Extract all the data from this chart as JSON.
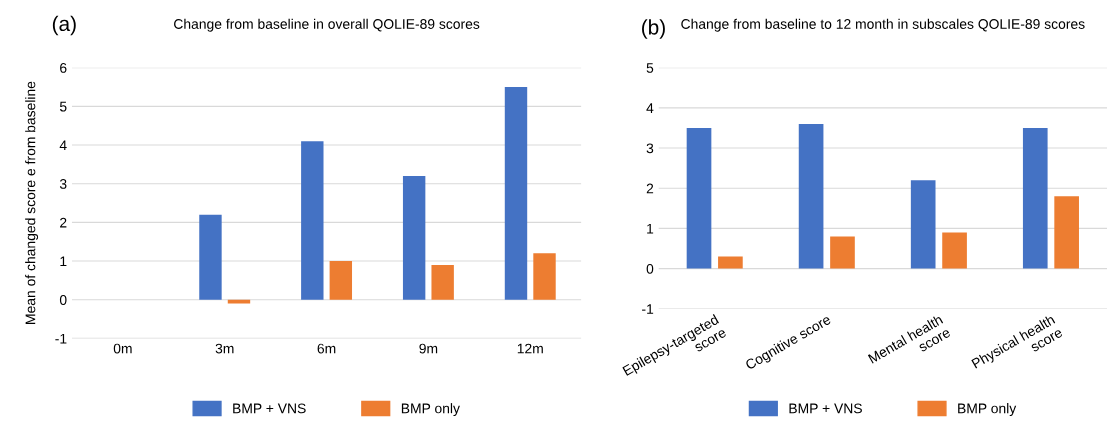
{
  "chart_data": [
    {
      "type": "bar",
      "title": "Change from baseline in overall QOLIE-89 scores",
      "ylabel": "Mean of changed score e from baseline",
      "annotations": [
        "(a)"
      ],
      "categories": [
        "0m",
        "3m",
        "6m",
        "9m",
        "12m"
      ],
      "series": [
        {
          "name": "BMP + VNS",
          "color": "#4472c4",
          "values": [
            null,
            2.2,
            4.1,
            3.2,
            5.5
          ]
        },
        {
          "name": "BMP only",
          "color": "#ed7d31",
          "values": [
            null,
            -0.1,
            1.0,
            0.9,
            1.2
          ]
        }
      ],
      "ylim": [
        -1,
        6
      ],
      "yticks": [
        -1,
        0,
        1,
        2,
        3,
        4,
        5,
        6
      ],
      "grid": "y",
      "legend": "bottom"
    },
    {
      "type": "bar",
      "title": "Change from baseline to 12 month in subscales QOLIE-89 scores",
      "annotations": [
        "(b)"
      ],
      "categories": [
        "Epilepsy-targeted\nscore",
        "Cognitive score",
        "Mental health\nscore",
        "Physical health\nscore"
      ],
      "series": [
        {
          "name": "BMP + VNS",
          "color": "#4472c4",
          "values": [
            3.5,
            3.6,
            2.2,
            3.5
          ]
        },
        {
          "name": "BMP only",
          "color": "#ed7d31",
          "values": [
            0.3,
            0.8,
            0.9,
            1.8
          ]
        }
      ],
      "ylim": [
        -1,
        5
      ],
      "yticks": [
        -1,
        0,
        1,
        2,
        3,
        4,
        5
      ],
      "grid": "y",
      "legend": "bottom"
    }
  ]
}
